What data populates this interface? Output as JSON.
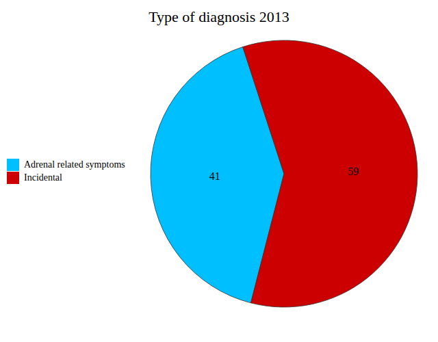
{
  "chart_data": {
    "type": "pie",
    "title": "Type of diagnosis 2013",
    "categories": [
      "Adrenal related symptoms",
      "Incidental"
    ],
    "values": [
      41,
      59
    ],
    "colors": [
      "#00BFFF",
      "#CC0000"
    ],
    "data_labels": true,
    "legend": "left"
  }
}
